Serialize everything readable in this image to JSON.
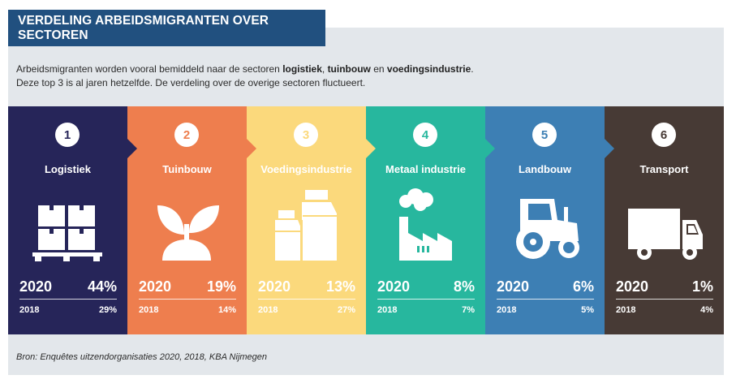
{
  "title": "VERDELING ARBEIDSMIGRANTEN OVER SECTOREN",
  "intro": {
    "line1_a": "Arbeidsmigranten worden vooral bemiddeld naar de sectoren ",
    "line1_b": "logistiek",
    "line1_c": ", ",
    "line1_d": "tuinbouw",
    "line1_e": " en ",
    "line1_f": "voedingsindustrie",
    "line1_g": ".",
    "line2": "Deze top 3 is al jaren hetzelfde. De verdeling over de overige sectoren fluctueert."
  },
  "sectors": [
    {
      "rank": "1",
      "name": "Logistiek",
      "year_a": "2020",
      "value_a": "44%",
      "year_b": "2018",
      "value_b": "29%",
      "color": "#262559",
      "icon": "pallet-boxes-icon"
    },
    {
      "rank": "2",
      "name": "Tuinbouw",
      "year_a": "2020",
      "value_a": "19%",
      "year_b": "2018",
      "value_b": "14%",
      "color": "#ee7e4e",
      "icon": "sprout-icon"
    },
    {
      "rank": "3",
      "name": "Voedingsindustrie",
      "year_a": "2020",
      "value_a": "13%",
      "year_b": "2018",
      "value_b": "27%",
      "color": "#fbd97c",
      "icon": "milk-cartons-icon"
    },
    {
      "rank": "4",
      "name": "Metaal industrie",
      "year_a": "2020",
      "value_a": "8%",
      "year_b": "2018",
      "value_b": "7%",
      "color": "#27b79e",
      "icon": "factory-icon"
    },
    {
      "rank": "5",
      "name": "Landbouw",
      "year_a": "2020",
      "value_a": "6%",
      "year_b": "2018",
      "value_b": "5%",
      "color": "#3d7fb4",
      "icon": "tractor-icon"
    },
    {
      "rank": "6",
      "name": "Transport",
      "year_a": "2020",
      "value_a": "1%",
      "year_b": "2018",
      "value_b": "4%",
      "color": "#473a35",
      "icon": "truck-icon"
    }
  ],
  "source": "Bron: Enquêtes uitzendorganisaties 2020, 2018, KBA Nijmegen"
}
